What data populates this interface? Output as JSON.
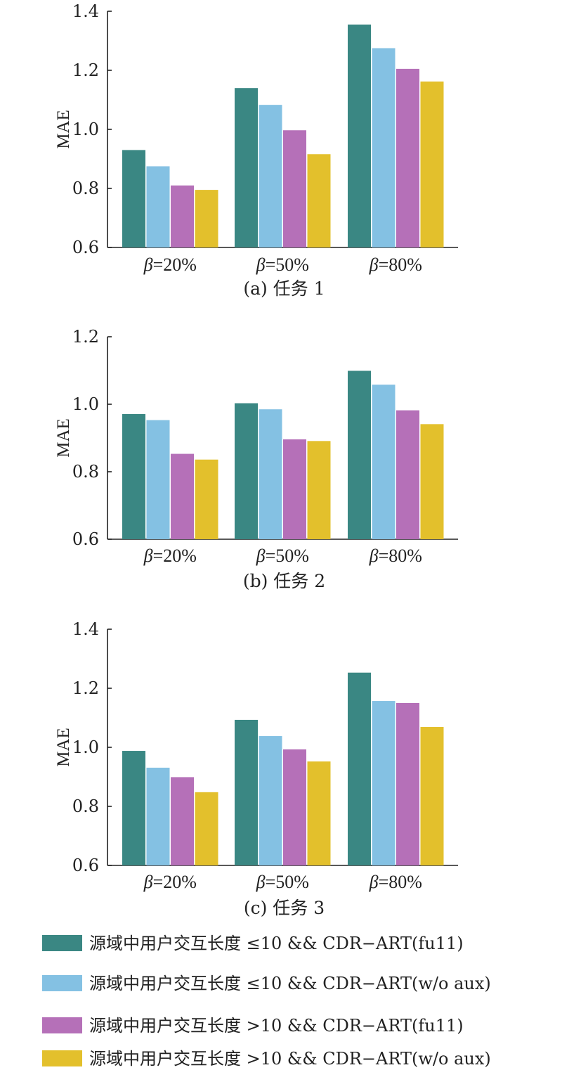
{
  "colors": {
    "series": [
      "#3a8783",
      "#84c1e3",
      "#b570b8",
      "#e3c02c"
    ],
    "axis": "#222222"
  },
  "legend": {
    "placement": "bottom",
    "entries": [
      "源域中用户交互长度 ≤10 && CDR−ART(fu11)",
      "源域中用户交互长度 ≤10 && CDR−ART(w/o aux)",
      "源域中用户交互长度 >10 && CDR−ART(fu11)",
      "源域中用户交互长度 >10 && CDR−ART(w/o aux)"
    ]
  },
  "chart_data": [
    {
      "type": "bar",
      "caption": "(a) 任务 1",
      "ylabel": "MAE",
      "ylim": [
        0.6,
        1.4
      ],
      "yticks": [
        "0.6",
        "0.8",
        "1.0",
        "1.2",
        "1.4"
      ],
      "category_prefix": "β",
      "categories": [
        "=20%",
        "=50%",
        "=80%"
      ],
      "series": [
        {
          "name": "源域中用户交互长度 ≤10 && CDR−ART(fu11)",
          "values": [
            0.93,
            1.14,
            1.355
          ]
        },
        {
          "name": "源域中用户交互长度 ≤10 && CDR−ART(w/o aux)",
          "values": [
            0.875,
            1.083,
            1.275
          ]
        },
        {
          "name": "源域中用户交互长度 >10 && CDR−ART(fu11)",
          "values": [
            0.81,
            0.997,
            1.205
          ]
        },
        {
          "name": "源域中用户交互长度 >10 && CDR−ART(w/o aux)",
          "values": [
            0.795,
            0.916,
            1.162
          ]
        }
      ]
    },
    {
      "type": "bar",
      "caption": "(b) 任务 2",
      "ylabel": "MAE",
      "ylim": [
        0.6,
        1.2
      ],
      "yticks": [
        "0.6",
        "0.8",
        "1.0",
        "1.2"
      ],
      "category_prefix": "β",
      "categories": [
        "=20%",
        "=50%",
        "=80%"
      ],
      "series": [
        {
          "name": "源域中用户交互长度 ≤10 && CDR−ART(fu11)",
          "values": [
            0.971,
            1.003,
            1.099
          ]
        },
        {
          "name": "源域中用户交互长度 ≤10 && CDR−ART(w/o aux)",
          "values": [
            0.953,
            0.985,
            1.058
          ]
        },
        {
          "name": "源域中用户交互长度 >10 && CDR−ART(fu11)",
          "values": [
            0.853,
            0.896,
            0.982
          ]
        },
        {
          "name": "源域中用户交互长度 >10 && CDR−ART(w/o aux)",
          "values": [
            0.836,
            0.891,
            0.941
          ]
        }
      ]
    },
    {
      "type": "bar",
      "caption": "(c) 任务 3",
      "ylabel": "MAE",
      "ylim": [
        0.6,
        1.4
      ],
      "yticks": [
        "0.6",
        "0.8",
        "1.0",
        "1.2",
        "1.4"
      ],
      "category_prefix": "β",
      "categories": [
        "=20%",
        "=50%",
        "=80%"
      ],
      "series": [
        {
          "name": "源域中用户交互长度 ≤10 && CDR−ART(fu11)",
          "values": [
            0.988,
            1.093,
            1.253
          ]
        },
        {
          "name": "源域中用户交互长度 ≤10 && CDR−ART(w/o aux)",
          "values": [
            0.931,
            1.038,
            1.157
          ]
        },
        {
          "name": "源域中用户交互长度 >10 && CDR−ART(fu11)",
          "values": [
            0.899,
            0.993,
            1.15
          ]
        },
        {
          "name": "源域中用户交互长度 >10 && CDR−ART(w/o aux)",
          "values": [
            0.848,
            0.952,
            1.069
          ]
        }
      ]
    }
  ]
}
